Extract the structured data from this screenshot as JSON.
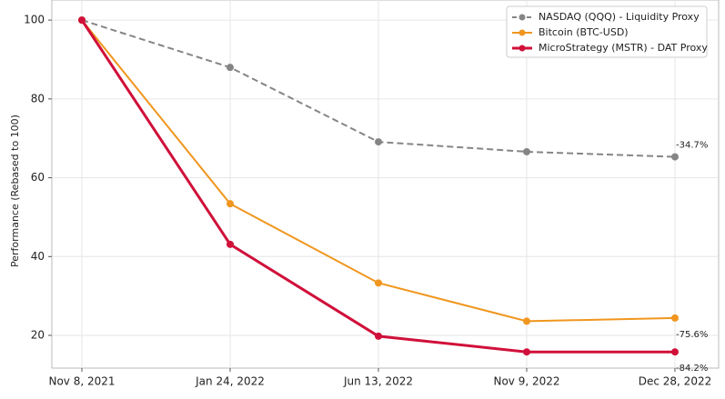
{
  "chart_data": {
    "type": "line",
    "y_label": "Performance (Rebased to 100)",
    "categories": [
      "Nov 8, 2021",
      "Jan 24, 2022",
      "Jun 13, 2022",
      "Nov 9, 2022",
      "Dec 28, 2022"
    ],
    "series": [
      {
        "name": "NASDAQ (QQQ) - Liquidity Proxy",
        "color": "#858585",
        "style": "dashed",
        "values": [
          100,
          88,
          69.1,
          66.6,
          65.3
        ],
        "end_label": "-34.7%"
      },
      {
        "name": "Bitcoin (BTC-USD)",
        "color": "#f0961e",
        "style": "solid",
        "values": [
          100,
          53.4,
          33.3,
          23.6,
          24.4
        ],
        "end_label": "-75.6%"
      },
      {
        "name": "MicroStrategy (MSTR) - DAT Proxy",
        "color": "#d0103a",
        "style": "solid",
        "values": [
          100,
          43.1,
          19.8,
          15.8,
          15.8
        ],
        "end_label": "-84.2%"
      }
    ],
    "ylim": [
      11.7,
      105.1
    ],
    "yticks": [
      20,
      40,
      60,
      80,
      100
    ],
    "grid": true,
    "legend": "upper right"
  }
}
